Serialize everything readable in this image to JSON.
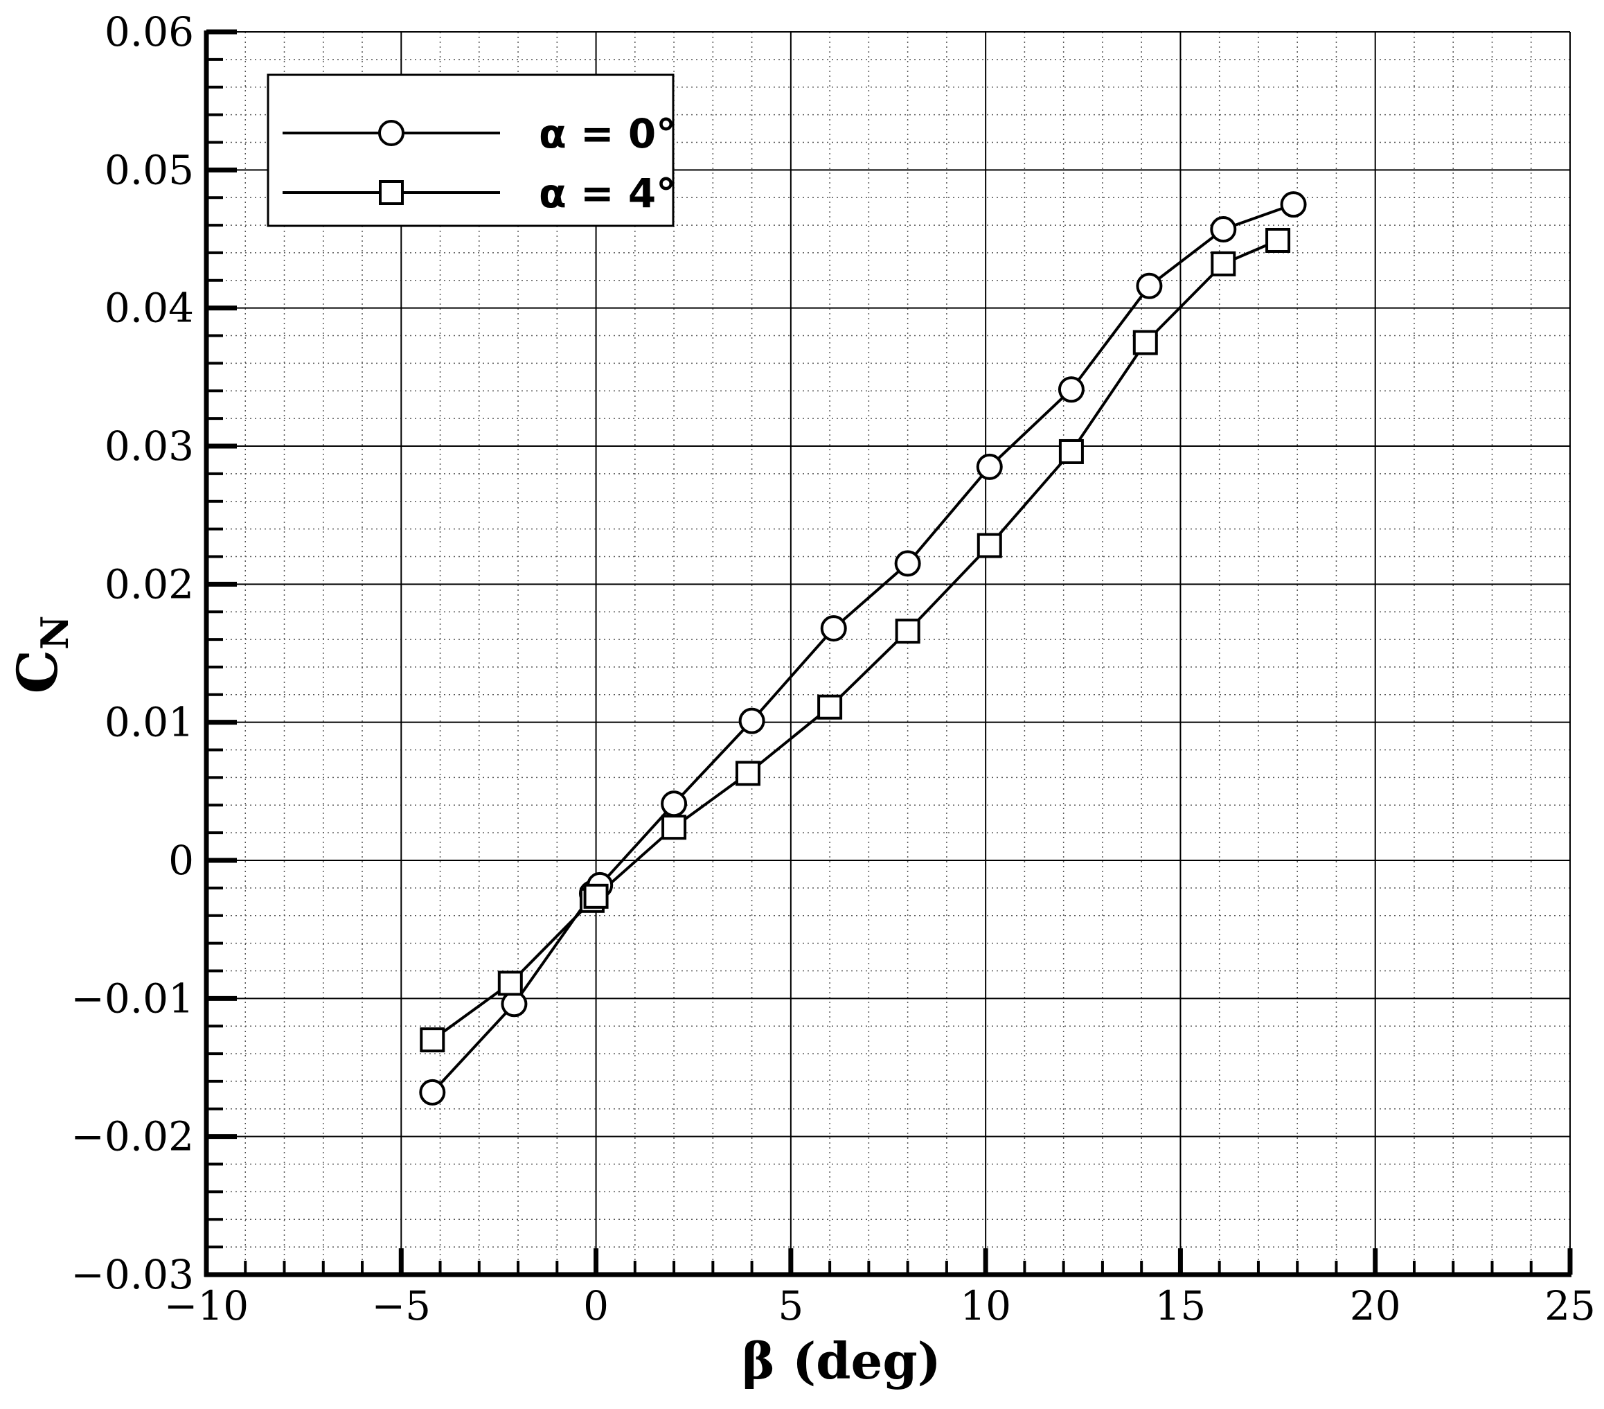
{
  "chart_data": {
    "type": "line",
    "title": "",
    "xlabel": "β (deg)",
    "ylabel_main": "C",
    "ylabel_sub": "N",
    "xlim": [
      -10,
      25
    ],
    "ylim": [
      -0.03,
      0.06
    ],
    "x_ticks": [
      -10,
      -5,
      0,
      5,
      10,
      15,
      20,
      25
    ],
    "x_tick_labels": [
      "−10",
      "−5",
      "0",
      "5",
      "10",
      "15",
      "20",
      "25"
    ],
    "y_ticks": [
      -0.03,
      -0.02,
      -0.01,
      0,
      0.01,
      0.02,
      0.03,
      0.04,
      0.05,
      0.06
    ],
    "y_tick_labels": [
      "−0.03",
      "−0.02",
      "−0.01",
      "0",
      "0.01",
      "0.02",
      "0.03",
      "0.04",
      "0.05",
      "0.06"
    ],
    "grid": true,
    "minor_grid": true,
    "legend_position": "top-left",
    "series": [
      {
        "name": "α = 0°",
        "marker": "circle",
        "color": "#000000",
        "x": [
          -4.2,
          -2.1,
          -0.1,
          0.1,
          2.0,
          4.0,
          6.1,
          8.0,
          10.1,
          12.2,
          14.2,
          16.1,
          17.9
        ],
        "y": [
          -0.0168,
          -0.0104,
          -0.0024,
          -0.0018,
          0.0041,
          0.0101,
          0.0168,
          0.0215,
          0.0285,
          0.0341,
          0.0416,
          0.0457,
          0.0475
        ]
      },
      {
        "name": "α = 4°",
        "marker": "square",
        "color": "#000000",
        "x": [
          -4.2,
          -2.2,
          -0.1,
          0.0,
          2.0,
          3.9,
          6.0,
          8.0,
          10.1,
          12.2,
          14.1,
          16.1,
          17.5
        ],
        "y": [
          -0.013,
          -0.0089,
          -0.0029,
          -0.0026,
          0.0024,
          0.0063,
          0.0111,
          0.0166,
          0.0228,
          0.0296,
          0.0375,
          0.0432,
          0.0449
        ]
      }
    ]
  }
}
